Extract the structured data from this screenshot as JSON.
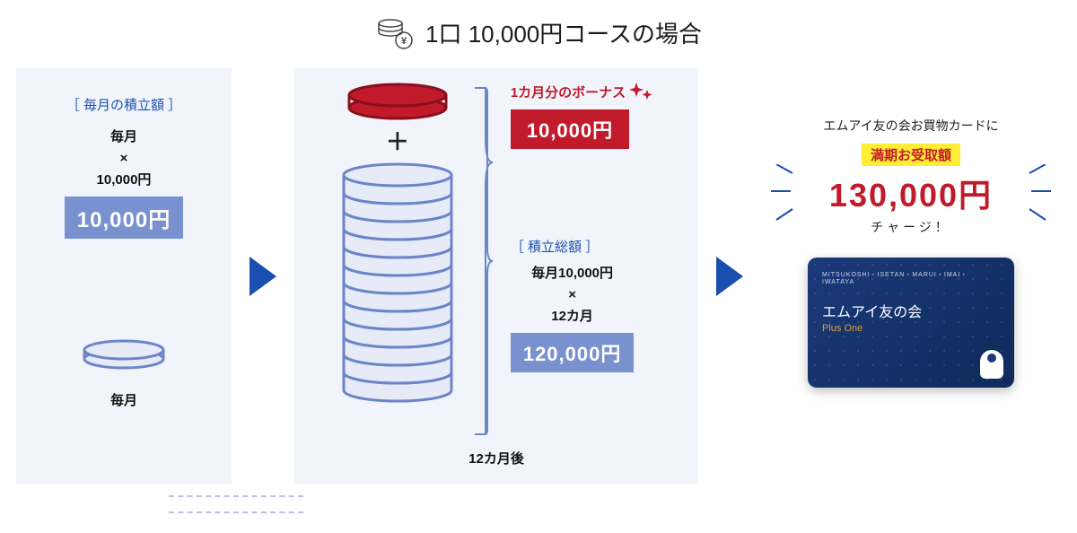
{
  "header": {
    "title": "1口 10,000円コースの場合"
  },
  "colors": {
    "panel_bg": "#f1f5fb",
    "blue": "#1a4fb0",
    "badge_blue": "#7a91cf",
    "red": "#c11a2b",
    "yellow": "#ffee33",
    "coin_edge": "#6b85c9",
    "coin_face": "#e6ebf7",
    "card_bg_from": "#1a3a7a",
    "card_bg_to": "#0f2a5a",
    "card_accent": "#e0a030"
  },
  "panel1": {
    "bracket_label": "［ 毎月の積立額 ］",
    "line1": "毎月",
    "times": "×",
    "line2": "10,000円",
    "amount": "10,000円",
    "bottom_label": "毎月"
  },
  "panel2": {
    "plus": "＋",
    "bonus_label": "1カ月分のボーナス",
    "bonus_amount": "10,000円",
    "total_label": "［ 積立総額 ］",
    "total_line1": "毎月10,000円",
    "total_times": "×",
    "total_line2": "12カ月",
    "total_amount": "120,000円",
    "bottom_label": "12カ月後",
    "stack_count": 12
  },
  "panel3": {
    "intro": "エムアイ友の会お買物カードに",
    "yellow_label": "満期お受取額",
    "big_amount": "130,000円",
    "charge": "チャージ！",
    "card_top": "MITSUKOSHI・ISETAN・MARUI・IMAI・IWATAYA",
    "card_title": "エムアイ友の会",
    "card_sub": "Plus One"
  }
}
